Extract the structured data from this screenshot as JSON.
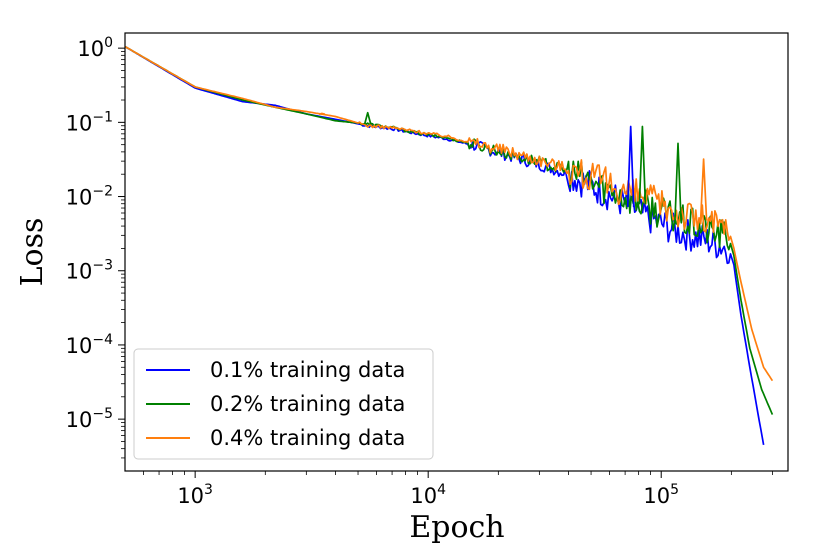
{
  "chart_data": {
    "type": "line",
    "title": "",
    "xlabel": "Epoch",
    "ylabel": "Loss",
    "xscale": "log",
    "yscale": "log",
    "xlim": [
      500,
      350000
    ],
    "ylim": [
      2e-06,
      1.6
    ],
    "x_ticks": [
      {
        "base": "10",
        "exp": "3",
        "value": 1000
      },
      {
        "base": "10",
        "exp": "4",
        "value": 10000
      },
      {
        "base": "10",
        "exp": "5",
        "value": 100000
      }
    ],
    "y_ticks": [
      {
        "base": "10",
        "exp": "0",
        "value": 1
      },
      {
        "base": "10",
        "exp": "−1",
        "value": 0.1
      },
      {
        "base": "10",
        "exp": "−2",
        "value": 0.01
      },
      {
        "base": "10",
        "exp": "−3",
        "value": 0.001
      },
      {
        "base": "10",
        "exp": "−4",
        "value": 0.0001
      },
      {
        "base": "10",
        "exp": "−5",
        "value": 1e-05
      }
    ],
    "legend_position": "lower-left",
    "series": [
      {
        "name": "0.1% training data",
        "color": "#0000ff",
        "x": [
          500,
          1000,
          1600,
          2200,
          3000,
          4000,
          5500,
          7000,
          9000,
          12000,
          16000,
          22000,
          30000,
          40000,
          55000,
          70000,
          90000,
          120000,
          160000,
          195000,
          205000,
          220000,
          240000,
          260000,
          275000
        ],
        "y": [
          1.05,
          0.29,
          0.19,
          0.17,
          0.13,
          0.11,
          0.09,
          0.082,
          0.07,
          0.06,
          0.048,
          0.036,
          0.027,
          0.02,
          0.012,
          0.008,
          0.005,
          0.0033,
          0.0025,
          0.002,
          0.0012,
          0.00025,
          5e-05,
          1.2e-05,
          4.5e-06
        ]
      },
      {
        "name": "0.2% training data",
        "color": "#008000",
        "x": [
          500,
          1000,
          1600,
          2200,
          3000,
          4000,
          5500,
          7000,
          9000,
          12000,
          16000,
          22000,
          30000,
          40000,
          55000,
          70000,
          90000,
          120000,
          160000,
          195000,
          205000,
          220000,
          240000,
          270000,
          300000
        ],
        "y": [
          1.05,
          0.3,
          0.2,
          0.16,
          0.13,
          0.105,
          0.095,
          0.085,
          0.072,
          0.062,
          0.05,
          0.038,
          0.029,
          0.022,
          0.014,
          0.01,
          0.007,
          0.0048,
          0.0035,
          0.0028,
          0.0016,
          0.0004,
          9e-05,
          2.5e-05,
          1.15e-05
        ]
      },
      {
        "name": "0.4% training data",
        "color": "#ff7f0e",
        "x": [
          500,
          1000,
          1600,
          2200,
          3000,
          4000,
          5500,
          7000,
          9000,
          12000,
          16000,
          22000,
          30000,
          40000,
          55000,
          70000,
          90000,
          120000,
          160000,
          195000,
          205000,
          220000,
          245000,
          275000,
          300000
        ],
        "y": [
          1.05,
          0.3,
          0.21,
          0.16,
          0.14,
          0.12,
          0.09,
          0.085,
          0.075,
          0.065,
          0.052,
          0.041,
          0.031,
          0.024,
          0.016,
          0.012,
          0.009,
          0.006,
          0.0045,
          0.0035,
          0.002,
          0.0007,
          0.00016,
          5e-05,
          3.3e-05
        ]
      }
    ],
    "spikes": [
      {
        "series": 0,
        "x": 74000,
        "y": 0.088
      },
      {
        "series": 1,
        "x": 5500,
        "y": 0.135
      },
      {
        "series": 1,
        "x": 83000,
        "y": 0.088
      },
      {
        "series": 1,
        "x": 118000,
        "y": 0.052
      },
      {
        "series": 2,
        "x": 3500,
        "y": 0.132
      },
      {
        "series": 2,
        "x": 152000,
        "y": 0.032
      }
    ]
  }
}
